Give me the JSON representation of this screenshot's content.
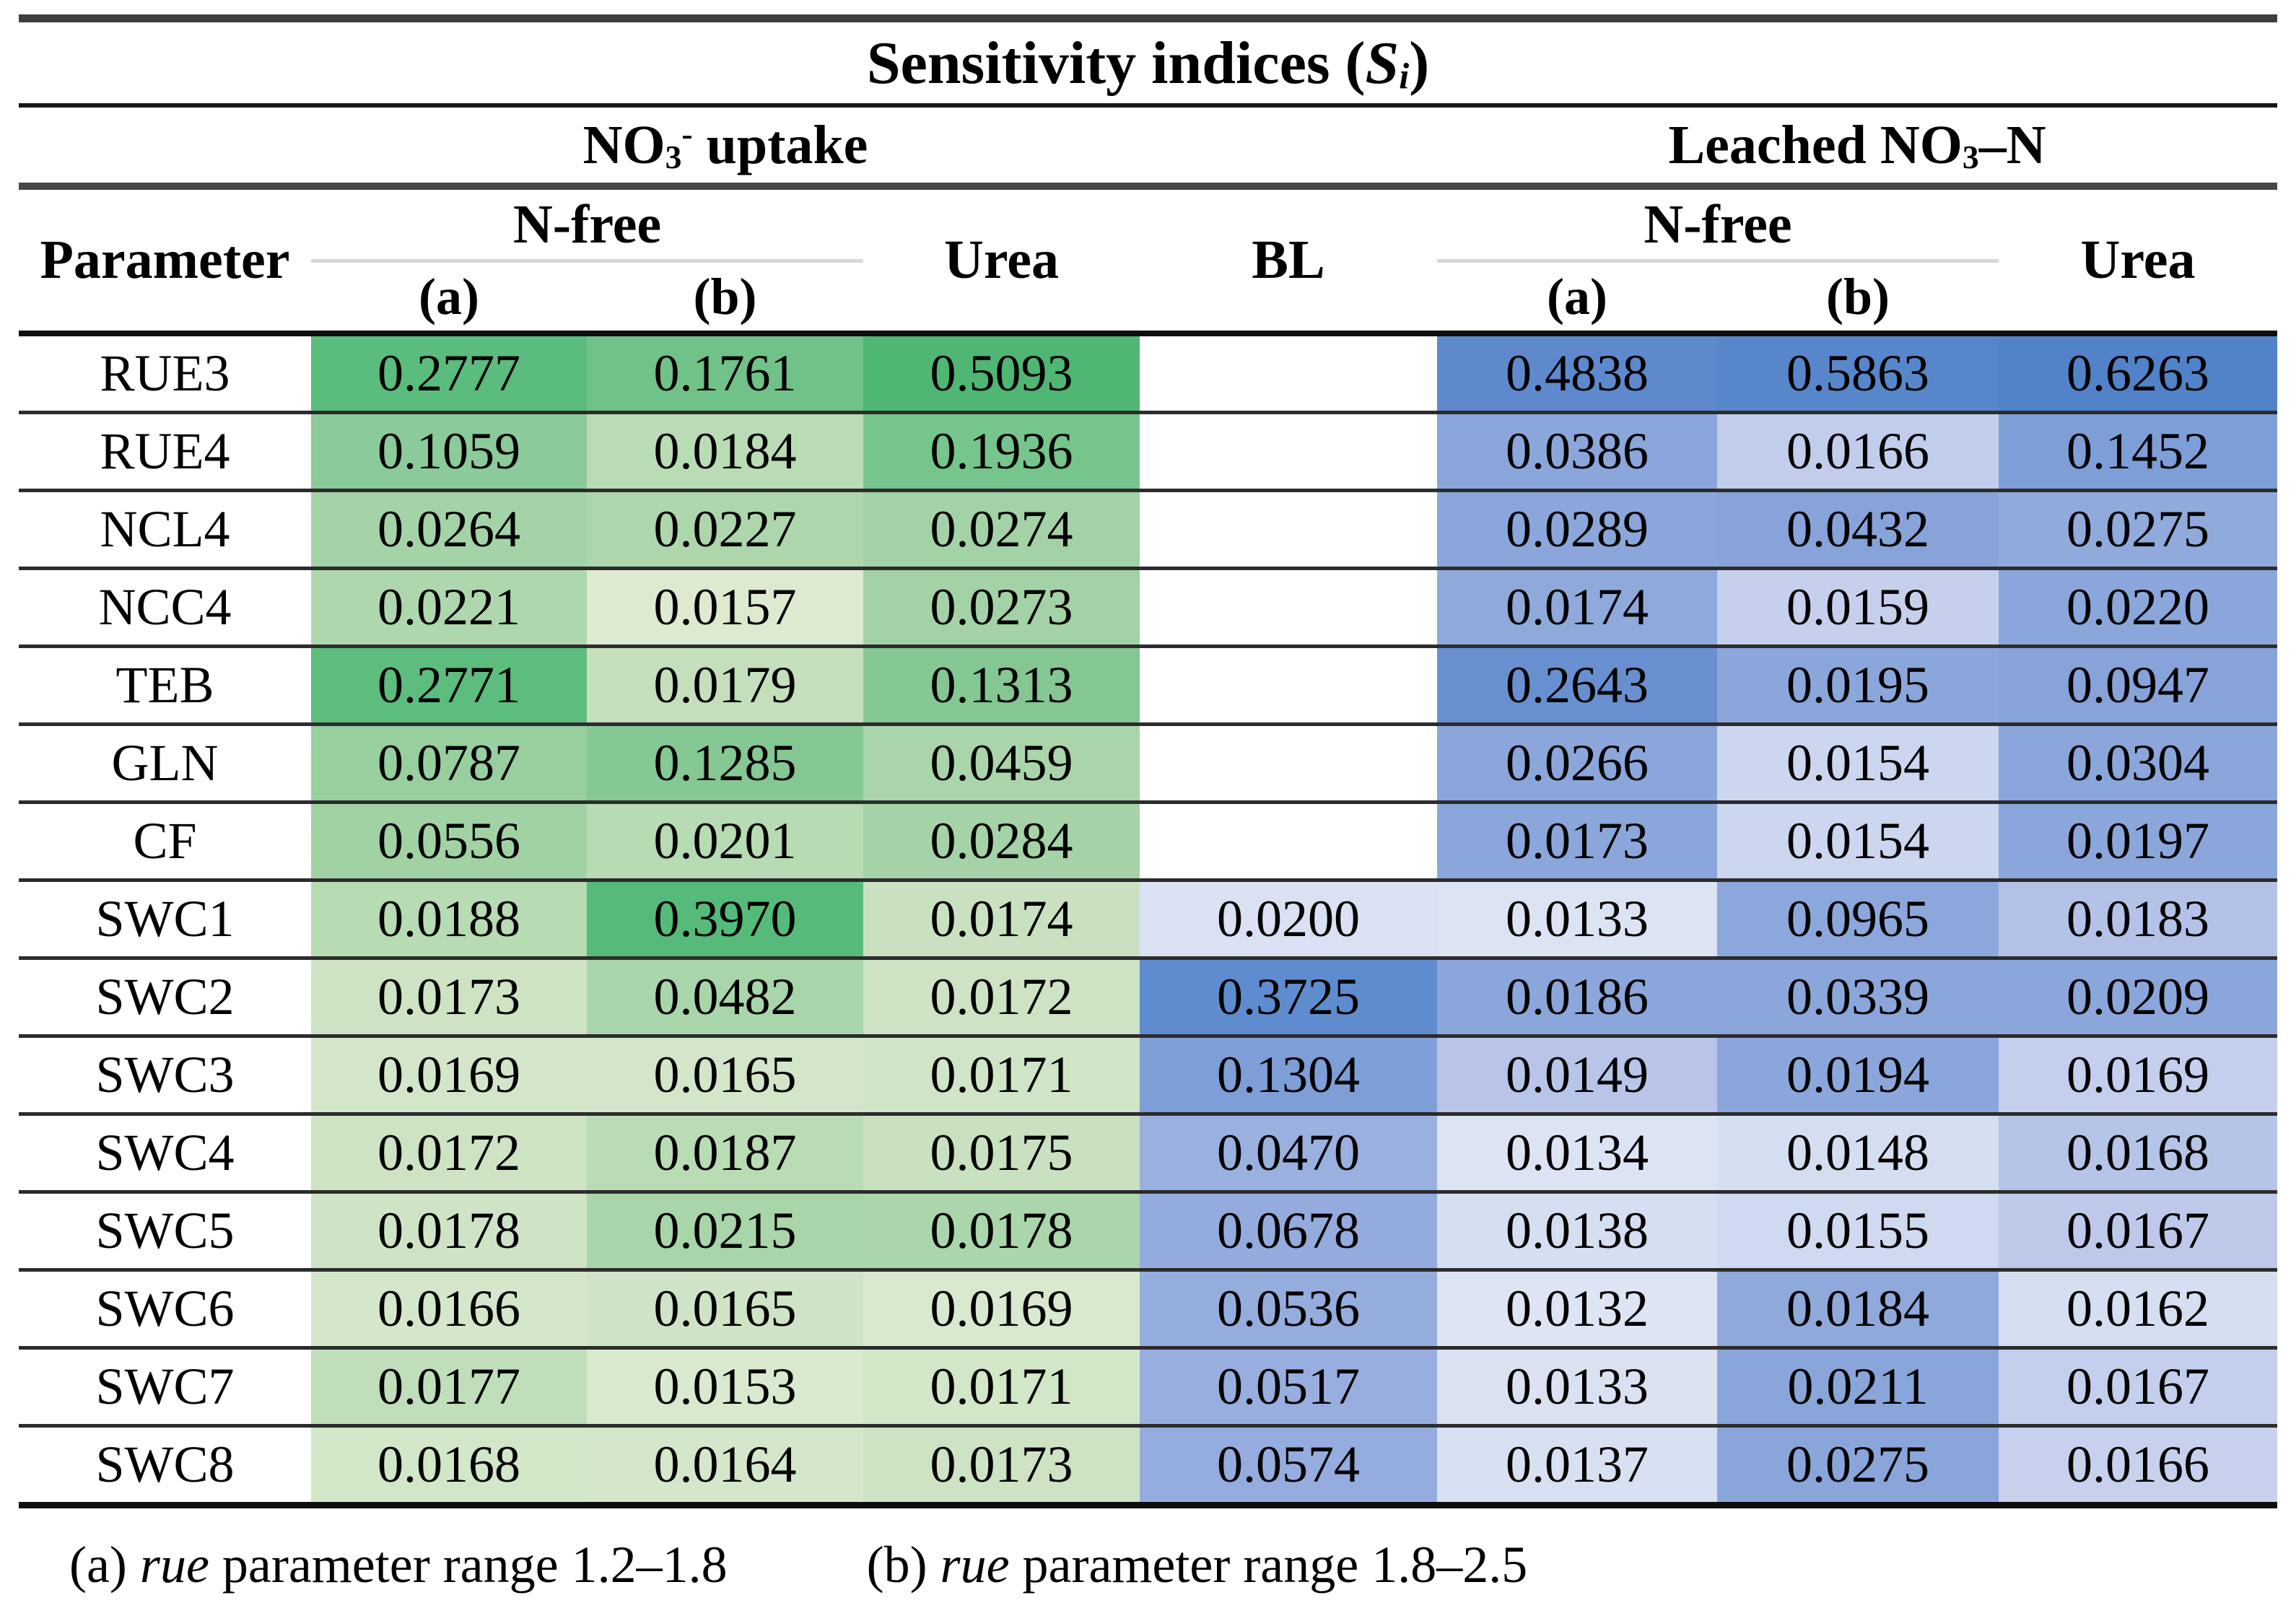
{
  "title_rich": [
    {
      "t": "Sensitivity indices ("
    },
    {
      "t": "S",
      "i": true
    },
    {
      "t": "i",
      "i": true,
      "sub": true
    },
    {
      "t": ")"
    }
  ],
  "header": {
    "group_no3_rich": [
      {
        "t": "NO"
      },
      {
        "t": "3",
        "sub": true
      },
      {
        "t": "-",
        "sup": true
      },
      {
        "t": " uptake"
      }
    ],
    "group_leached_rich": [
      {
        "t": "Leached NO"
      },
      {
        "t": "3",
        "sub": true
      },
      {
        "t": "–N"
      }
    ],
    "parameter": "Parameter",
    "nfree": "N-free",
    "urea": "Urea",
    "bl": "BL",
    "a": "(a)",
    "b": "(b)"
  },
  "colors": {
    "green_dark": "#4fb674",
    "green_light": "#dcead0",
    "blue_dark": "#5282c8",
    "blue_light": "#dde4f3",
    "empty": "#ffffff"
  },
  "rows": [
    {
      "param": "RUE3",
      "cells": [
        {
          "v": "0.2777",
          "bg": "#5abc7d"
        },
        {
          "v": "0.1761",
          "bg": "#71c288"
        },
        {
          "v": "0.5093",
          "bg": "#4fb674"
        },
        {
          "v": "",
          "bg": "#ffffff"
        },
        {
          "v": "0.4838",
          "bg": "#5e89cc"
        },
        {
          "v": "0.5863",
          "bg": "#5886ca"
        },
        {
          "v": "0.6263",
          "bg": "#5282c8"
        }
      ]
    },
    {
      "param": "RUE4",
      "cells": [
        {
          "v": "0.1059",
          "bg": "#8bca9a"
        },
        {
          "v": "0.0184",
          "bg": "#b9dcb4"
        },
        {
          "v": "0.1936",
          "bg": "#76c58c"
        },
        {
          "v": "",
          "bg": "#ffffff"
        },
        {
          "v": "0.0386",
          "bg": "#8ba6da"
        },
        {
          "v": "0.0166",
          "bg": "#c2cdec"
        },
        {
          "v": "0.1452",
          "bg": "#7e9ed7"
        }
      ]
    },
    {
      "param": "NCL4",
      "cells": [
        {
          "v": "0.0264",
          "bg": "#a5d3a8"
        },
        {
          "v": "0.0227",
          "bg": "#add6ad"
        },
        {
          "v": "0.0274",
          "bg": "#a3d2a6"
        },
        {
          "v": "",
          "bg": "#ffffff"
        },
        {
          "v": "0.0289",
          "bg": "#8ba6da"
        },
        {
          "v": "0.0432",
          "bg": "#87a3d9"
        },
        {
          "v": "0.0275",
          "bg": "#90aadc"
        }
      ]
    },
    {
      "param": "NCC4",
      "cells": [
        {
          "v": "0.0221",
          "bg": "#afd7ae"
        },
        {
          "v": "0.0157",
          "bg": "#dcead0"
        },
        {
          "v": "0.0273",
          "bg": "#a3d2a6"
        },
        {
          "v": "",
          "bg": "#ffffff"
        },
        {
          "v": "0.0174",
          "bg": "#8fa9db"
        },
        {
          "v": "0.0159",
          "bg": "#c6d0ed"
        },
        {
          "v": "0.0220",
          "bg": "#8ba6da"
        }
      ]
    },
    {
      "param": "TEB",
      "cells": [
        {
          "v": "0.2771",
          "bg": "#5cbd7e"
        },
        {
          "v": "0.0179",
          "bg": "#c5dfbd"
        },
        {
          "v": "0.1313",
          "bg": "#84c793"
        },
        {
          "v": "",
          "bg": "#ffffff"
        },
        {
          "v": "0.2643",
          "bg": "#6890d0"
        },
        {
          "v": "0.0195",
          "bg": "#8ba6da"
        },
        {
          "v": "0.0947",
          "bg": "#87a3d9"
        }
      ]
    },
    {
      "param": "GLN",
      "cells": [
        {
          "v": "0.0787",
          "bg": "#97cf9f"
        },
        {
          "v": "0.1285",
          "bg": "#85c894"
        },
        {
          "v": "0.0459",
          "bg": "#aad5ab"
        },
        {
          "v": "",
          "bg": "#ffffff"
        },
        {
          "v": "0.0266",
          "bg": "#8ba6da"
        },
        {
          "v": "0.0154",
          "bg": "#ccd6ef"
        },
        {
          "v": "0.0304",
          "bg": "#8ba6da"
        }
      ]
    },
    {
      "param": "CF",
      "cells": [
        {
          "v": "0.0556",
          "bg": "#a1d2a4"
        },
        {
          "v": "0.0201",
          "bg": "#b7dbb2"
        },
        {
          "v": "0.0284",
          "bg": "#a5d3a7"
        },
        {
          "v": "",
          "bg": "#ffffff"
        },
        {
          "v": "0.0173",
          "bg": "#8ba6da"
        },
        {
          "v": "0.0154",
          "bg": "#ccd6ef"
        },
        {
          "v": "0.0197",
          "bg": "#8ba6da"
        }
      ]
    },
    {
      "param": "SWC1",
      "cells": [
        {
          "v": "0.0188",
          "bg": "#b7dbb2"
        },
        {
          "v": "0.3970",
          "bg": "#56ba7a"
        },
        {
          "v": "0.0174",
          "bg": "#cae1c1"
        },
        {
          "v": "0.0200",
          "bg": "#d9e1f2"
        },
        {
          "v": "0.0133",
          "bg": "#dce4f3"
        },
        {
          "v": "0.0965",
          "bg": "#8ca7db"
        },
        {
          "v": "0.0183",
          "bg": "#b4c2e8"
        }
      ]
    },
    {
      "param": "SWC2",
      "cells": [
        {
          "v": "0.0173",
          "bg": "#cde3c4"
        },
        {
          "v": "0.0482",
          "bg": "#a9d5aa"
        },
        {
          "v": "0.0172",
          "bg": "#cde3c4"
        },
        {
          "v": "0.3725",
          "bg": "#5f8cce"
        },
        {
          "v": "0.0186",
          "bg": "#8ba6da"
        },
        {
          "v": "0.0339",
          "bg": "#8ba6da"
        },
        {
          "v": "0.0209",
          "bg": "#8ba6da"
        }
      ]
    },
    {
      "param": "SWC3",
      "cells": [
        {
          "v": "0.0169",
          "bg": "#d3e6c9"
        },
        {
          "v": "0.0165",
          "bg": "#d3e6c9"
        },
        {
          "v": "0.0171",
          "bg": "#d0e5c7"
        },
        {
          "v": "0.1304",
          "bg": "#7e9ed7"
        },
        {
          "v": "0.0149",
          "bg": "#b8c5e9"
        },
        {
          "v": "0.0194",
          "bg": "#8ba6da"
        },
        {
          "v": "0.0169",
          "bg": "#c3cfec"
        }
      ]
    },
    {
      "param": "SWC4",
      "cells": [
        {
          "v": "0.0172",
          "bg": "#cde3c4"
        },
        {
          "v": "0.0187",
          "bg": "#b9dcb4"
        },
        {
          "v": "0.0175",
          "bg": "#cae1c1"
        },
        {
          "v": "0.0470",
          "bg": "#9ab1e0"
        },
        {
          "v": "0.0134",
          "bg": "#dce4f3"
        },
        {
          "v": "0.0148",
          "bg": "#d5def1"
        },
        {
          "v": "0.0168",
          "bg": "#b6c4e8"
        }
      ]
    },
    {
      "param": "SWC5",
      "cells": [
        {
          "v": "0.0178",
          "bg": "#cfe4c6"
        },
        {
          "v": "0.0215",
          "bg": "#a9d5aa"
        },
        {
          "v": "0.0178",
          "bg": "#abd6ac"
        },
        {
          "v": "0.0678",
          "bg": "#94acdd"
        },
        {
          "v": "0.0138",
          "bg": "#d6dff1"
        },
        {
          "v": "0.0155",
          "bg": "#cfd9f0"
        },
        {
          "v": "0.0167",
          "bg": "#bec9ea"
        }
      ]
    },
    {
      "param": "SWC6",
      "cells": [
        {
          "v": "0.0166",
          "bg": "#d4e7ca"
        },
        {
          "v": "0.0165",
          "bg": "#cfe4c6"
        },
        {
          "v": "0.0169",
          "bg": "#d9e9cf"
        },
        {
          "v": "0.0536",
          "bg": "#95addd"
        },
        {
          "v": "0.0132",
          "bg": "#dde4f3"
        },
        {
          "v": "0.0184",
          "bg": "#8fa9db"
        },
        {
          "v": "0.0162",
          "bg": "#d6dff1"
        }
      ]
    },
    {
      "param": "SWC7",
      "cells": [
        {
          "v": "0.0177",
          "bg": "#c0deba"
        },
        {
          "v": "0.0153",
          "bg": "#d9e9cf"
        },
        {
          "v": "0.0171",
          "bg": "#d2e6c8"
        },
        {
          "v": "0.0517",
          "bg": "#97aede"
        },
        {
          "v": "0.0133",
          "bg": "#dae2f2"
        },
        {
          "v": "0.0211",
          "bg": "#8aa5da"
        },
        {
          "v": "0.0167",
          "bg": "#c3cfec"
        }
      ]
    },
    {
      "param": "SWC8",
      "cells": [
        {
          "v": "0.0168",
          "bg": "#d2e6c8"
        },
        {
          "v": "0.0164",
          "bg": "#d5e7cb"
        },
        {
          "v": "0.0173",
          "bg": "#cde3c4"
        },
        {
          "v": "0.0574",
          "bg": "#95acde"
        },
        {
          "v": "0.0137",
          "bg": "#d8e1f2"
        },
        {
          "v": "0.0275",
          "bg": "#8aa5da"
        },
        {
          "v": "0.0166",
          "bg": "#c7d1ed"
        }
      ]
    }
  ],
  "footnotes": {
    "a_rich": [
      {
        "t": "(a) "
      },
      {
        "t": "rue",
        "i": true
      },
      {
        "t": " parameter range 1.2–1.8"
      }
    ],
    "b_rich": [
      {
        "t": "(b) "
      },
      {
        "t": "rue",
        "i": true
      },
      {
        "t": " parameter range 1.8–2.5"
      }
    ]
  }
}
